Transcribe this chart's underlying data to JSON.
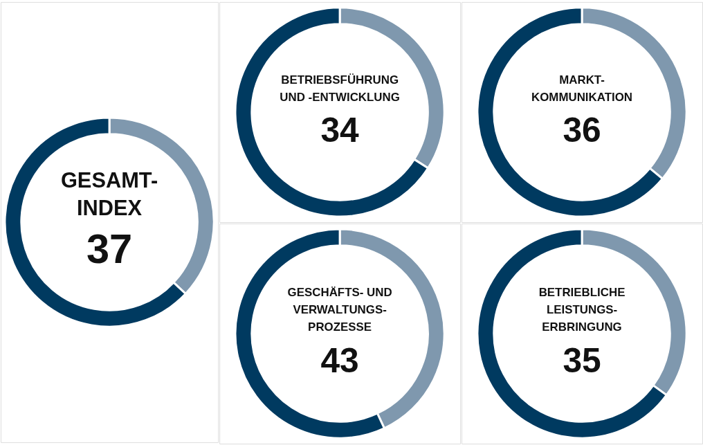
{
  "chart_data": [
    {
      "type": "donut",
      "title": "GESAMT-\nINDEX",
      "categories": [
        null,
        null
      ],
      "values": [
        37,
        63
      ],
      "colors": [
        "#7f98ae",
        "#003a60"
      ],
      "annotations": [
        "37"
      ]
    },
    {
      "type": "donut",
      "title": "BETRIEBSFÜHRUNG\nUND -ENTWICKLUNG",
      "categories": [
        null,
        null
      ],
      "values": [
        34,
        66
      ],
      "colors": [
        "#7f98ae",
        "#003a60"
      ],
      "annotations": [
        "34"
      ]
    },
    {
      "type": "donut",
      "title": "MARKT-\nKOMMUNIKATION",
      "categories": [
        null,
        null
      ],
      "values": [
        36,
        64
      ],
      "colors": [
        "#7f98ae",
        "#003a60"
      ],
      "annotations": [
        "36"
      ]
    },
    {
      "type": "donut",
      "title": "GESCHÄFTS- UND\nVERWALTUNGS-\nPROZESSE",
      "categories": [
        null,
        null
      ],
      "values": [
        43,
        57
      ],
      "colors": [
        "#7f98ae",
        "#003a60"
      ],
      "annotations": [
        "43"
      ]
    },
    {
      "type": "donut",
      "title": "BETRIEBLICHE\nLEISTUNGS-\nERBRINGUNG",
      "categories": [
        null,
        null
      ],
      "values": [
        35,
        65
      ],
      "colors": [
        "#7f98ae",
        "#003a60"
      ],
      "annotations": [
        "35"
      ]
    }
  ]
}
